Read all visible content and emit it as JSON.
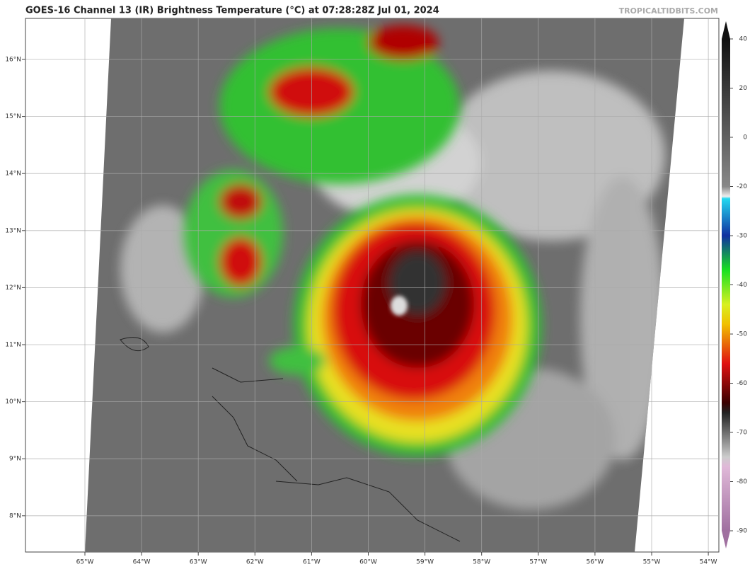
{
  "header": {
    "title": "GOES-16 Channel 13 (IR) Brightness Temperature (°C) at 07:28:28Z Jul 01, 2024",
    "source": "TROPICALTIDBITS.COM"
  },
  "map": {
    "lon_labels": [
      "65°W",
      "64°W",
      "63°W",
      "62°W",
      "61°W",
      "60°W",
      "59°W",
      "58°W",
      "57°W",
      "56°W",
      "55°W",
      "54°W"
    ],
    "lat_labels": [
      "16°N",
      "15°N",
      "14°N",
      "13°N",
      "12°N",
      "11°N",
      "10°N",
      "9°N",
      "8°N"
    ]
  },
  "colorbar": {
    "ticks": [
      40,
      20,
      0,
      -20,
      -30,
      -40,
      -50,
      -60,
      -70,
      -80,
      -90
    ]
  }
}
